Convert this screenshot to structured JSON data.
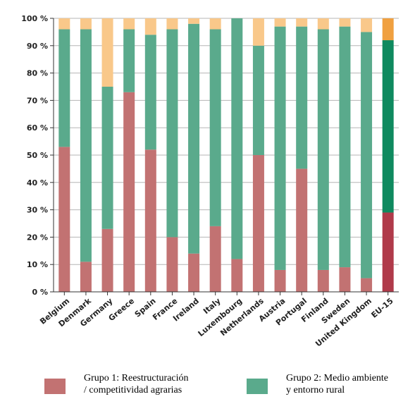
{
  "chart_data": {
    "type": "bar",
    "stacked": true,
    "ylim": [
      0,
      100
    ],
    "yticks": [
      "0 %",
      "10 %",
      "20 %",
      "30 %",
      "40 %",
      "50 %",
      "60 %",
      "70 %",
      "80 %",
      "90 %",
      "100 %"
    ],
    "categories": [
      "Belgium",
      "Denmark",
      "Germany",
      "Greece",
      "Spain",
      "France",
      "Ireland",
      "Italy",
      "Luxembourg",
      "Netherlands",
      "Austria",
      "Portugal",
      "Finland",
      "Sweden",
      "United Kingdom",
      "EU-15"
    ],
    "series": [
      {
        "name": "Grupo 1: Reestructuración / competitividad agrarias",
        "values": [
          53,
          11,
          23,
          73,
          52,
          20,
          14,
          24,
          12,
          50,
          8,
          45,
          8,
          9,
          5,
          29
        ],
        "color": "#c27272",
        "highlight_color": "#b03a4a"
      },
      {
        "name": "Grupo 2: Medio ambiente y entorno rural",
        "values": [
          43,
          85,
          52,
          23,
          42,
          76,
          84,
          72,
          88,
          40,
          89,
          52,
          88,
          88,
          90,
          63
        ],
        "color": "#5aaa8c",
        "highlight_color": "#0f8a5f"
      },
      {
        "values": [
          4,
          4,
          25,
          4,
          6,
          4,
          2,
          4,
          0,
          10,
          3,
          3,
          4,
          3,
          5,
          8
        ],
        "color": "#f9c88a",
        "highlight_color": "#f0a040"
      }
    ],
    "highlight_category": "EU-15"
  },
  "legend": {
    "item1_line1": "Grupo 1: Reestructuración",
    "item1_line2": "/ competitividad agrarias",
    "item2_line1": "Grupo 2: Medio ambiente",
    "item2_line2": "y entorno rural"
  }
}
